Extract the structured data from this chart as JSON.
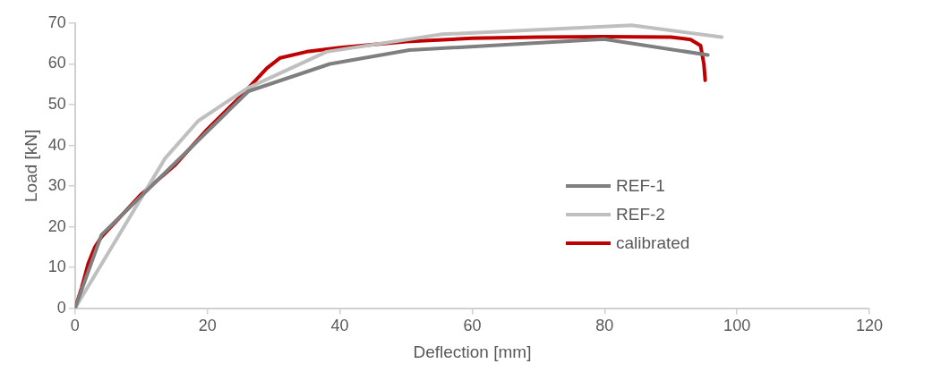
{
  "chart_data": {
    "type": "line",
    "xlabel": "Deflection [mm]",
    "ylabel": "Load [kN]",
    "xlim": [
      0,
      120
    ],
    "xticks": [
      0,
      20,
      40,
      60,
      80,
      100,
      120
    ],
    "ylim": [
      0,
      70
    ],
    "yticks": [
      0,
      10,
      20,
      30,
      40,
      50,
      60,
      70
    ],
    "grid": false,
    "legend": "right",
    "marker": "none",
    "line_style": "solid",
    "series": [
      {
        "name": "REF-1",
        "color": "#7f7f7f",
        "x": [
          0,
          4,
          26.2,
          38.5,
          50.5,
          79.9,
          95.6
        ],
        "values": [
          0,
          18,
          53.3,
          60,
          63.4,
          66.1,
          62.2
        ]
      },
      {
        "name": "REF-2",
        "color": "#bfbfbf",
        "x": [
          0,
          13.6,
          18.6,
          26,
          38,
          55.5,
          84.1,
          97.7
        ],
        "values": [
          0,
          36.8,
          46,
          54,
          63,
          67.3,
          69.5,
          66.6
        ]
      },
      {
        "name": "calibrated",
        "color": "#c00000",
        "x": [
          0,
          1,
          2,
          3,
          4,
          6,
          10,
          15,
          20,
          25,
          29,
          31,
          35,
          40,
          50,
          60,
          70,
          80,
          90,
          93,
          94.5,
          95,
          95.2
        ],
        "values": [
          0,
          5,
          11,
          15,
          17.5,
          21,
          28,
          35,
          44,
          52,
          59,
          61.5,
          63,
          64,
          65.5,
          66.3,
          66.6,
          66.7,
          66.6,
          66,
          64.5,
          60,
          56
        ]
      }
    ]
  }
}
